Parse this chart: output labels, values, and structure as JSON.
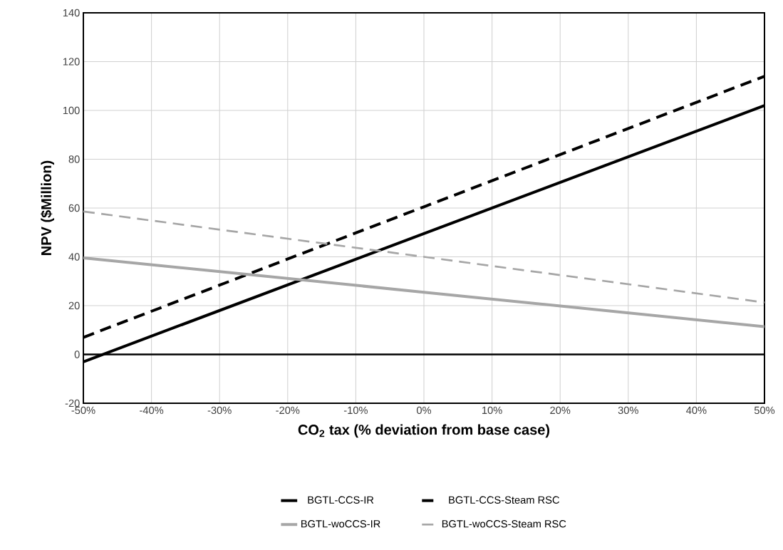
{
  "chart_data": {
    "type": "line",
    "xlabel": "CO$_{2}$ tax  (% deviation from base case)",
    "ylabel": "NPV ($Million)",
    "x": [
      -50,
      0,
      50
    ],
    "series": [
      {
        "name": "BGTL-CCS-IR",
        "color": "#000000",
        "line_style": "solid",
        "values": [
          -3,
          49.5,
          102
        ]
      },
      {
        "name": "BGTL-CCS-Steam RSC",
        "color": "#000000",
        "line_style": "dashed",
        "values": [
          7,
          60.5,
          114
        ]
      },
      {
        "name": "BGTL-woCCS-IR",
        "color": "#a6a6a6",
        "line_style": "solid",
        "values": [
          39.6,
          25.5,
          11.4
        ]
      },
      {
        "name": "BGTL-woCCS-Steam RSC",
        "color": "#a6a6a6",
        "line_style": "dashed",
        "values": [
          58.6,
          40,
          21.3
        ]
      }
    ],
    "xlim": [
      -50,
      50
    ],
    "xticks": [
      {
        "value": -50,
        "label": "-50%"
      },
      {
        "value": -40,
        "label": "-40%"
      },
      {
        "value": -30,
        "label": "-30%"
      },
      {
        "value": -20,
        "label": "-20%"
      },
      {
        "value": -10,
        "label": "-10%"
      },
      {
        "value": 0,
        "label": "0%"
      },
      {
        "value": 10,
        "label": "10%"
      },
      {
        "value": 20,
        "label": "20%"
      },
      {
        "value": 30,
        "label": "30%"
      },
      {
        "value": 40,
        "label": "40%"
      },
      {
        "value": 50,
        "label": "50%"
      }
    ],
    "ylim": [
      -20,
      140
    ],
    "yticks": [
      -20,
      0,
      20,
      40,
      60,
      80,
      100,
      120,
      140
    ],
    "ref_lines": [
      {
        "axis": "y",
        "value": 0,
        "color": "#000000"
      }
    ],
    "grid": true,
    "legend": "bottom",
    "marker": "none"
  }
}
